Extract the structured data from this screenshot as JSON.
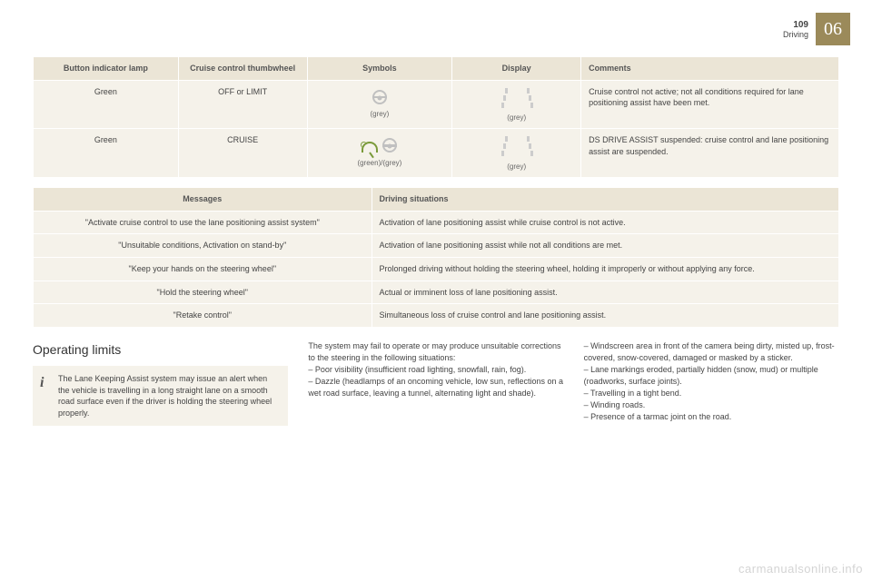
{
  "header": {
    "page": "109",
    "section": "Driving",
    "chapter": "06"
  },
  "table1": {
    "headers": [
      "Button indicator lamp",
      "Cruise control thumbwheel",
      "Symbols",
      "Display",
      "Comments"
    ],
    "col_widths": [
      "18%",
      "16%",
      "18%",
      "16%",
      "32%"
    ],
    "rows": [
      {
        "lamp": "Green",
        "thumb": "OFF or LIMIT",
        "symbol_label": "(grey)",
        "symbol_variant": "wheel-grey",
        "display_label": "(grey)",
        "comment": "Cruise control not active; not all conditions required for lane positioning assist have been met."
      },
      {
        "lamp": "Green",
        "thumb": "CRUISE",
        "symbol_label": "(green)/(grey)",
        "symbol_variant": "speedo-wheel",
        "display_label": "(grey)",
        "comment": "DS DRIVE ASSIST suspended: cruise control and lane positioning assist are suspended."
      }
    ]
  },
  "table2": {
    "headers": [
      "Messages",
      "Driving situations"
    ],
    "rows": [
      {
        "msg": "\"Activate cruise control to use the lane positioning assist system\"",
        "sit": "Activation of lane positioning assist while cruise control is not active."
      },
      {
        "msg": "\"Unsuitable conditions, Activation on stand-by\"",
        "sit": "Activation of lane positioning assist while not all conditions are met."
      },
      {
        "msg": "\"Keep your hands on the steering wheel\"",
        "sit": "Prolonged driving without holding the steering wheel, holding it improperly or without applying any force."
      },
      {
        "msg": "\"Hold the steering wheel\"",
        "sit": "Actual or imminent loss of lane positioning assist."
      },
      {
        "msg": "\"Retake control\"",
        "sit": "Simultaneous loss of cruise control and lane positioning assist."
      }
    ]
  },
  "limits": {
    "heading": "Operating limits",
    "info": "The Lane Keeping Assist system may issue an alert when the vehicle is travelling in a long straight lane on a smooth road surface even if the driver is holding the steering wheel properly.",
    "col2_intro": "The system may fail to operate or may produce unsuitable corrections to the steering in the following situations:",
    "col2_items": [
      "Poor visibility (insufficient road lighting, snowfall, rain, fog).",
      "Dazzle (headlamps of an oncoming vehicle, low sun, reflections on a wet road surface, leaving a tunnel, alternating light and shade)."
    ],
    "col3_items": [
      "Windscreen area in front of the camera being dirty, misted up, frost-covered, snow-covered, damaged or masked by a sticker.",
      "Lane markings eroded, partially hidden (snow, mud) or multiple (roadworks, surface joints).",
      "Travelling in a tight bend.",
      "Winding roads.",
      "Presence of a tarmac joint on the road."
    ]
  },
  "watermark": "carmanualsonline.info",
  "colors": {
    "table_bg": "#f5f2ea",
    "header_bg": "#ebe5d6",
    "chapter_bg": "#9b8a5a",
    "icon_grey": "#c0c0c0",
    "icon_green": "#7a9a3a"
  }
}
